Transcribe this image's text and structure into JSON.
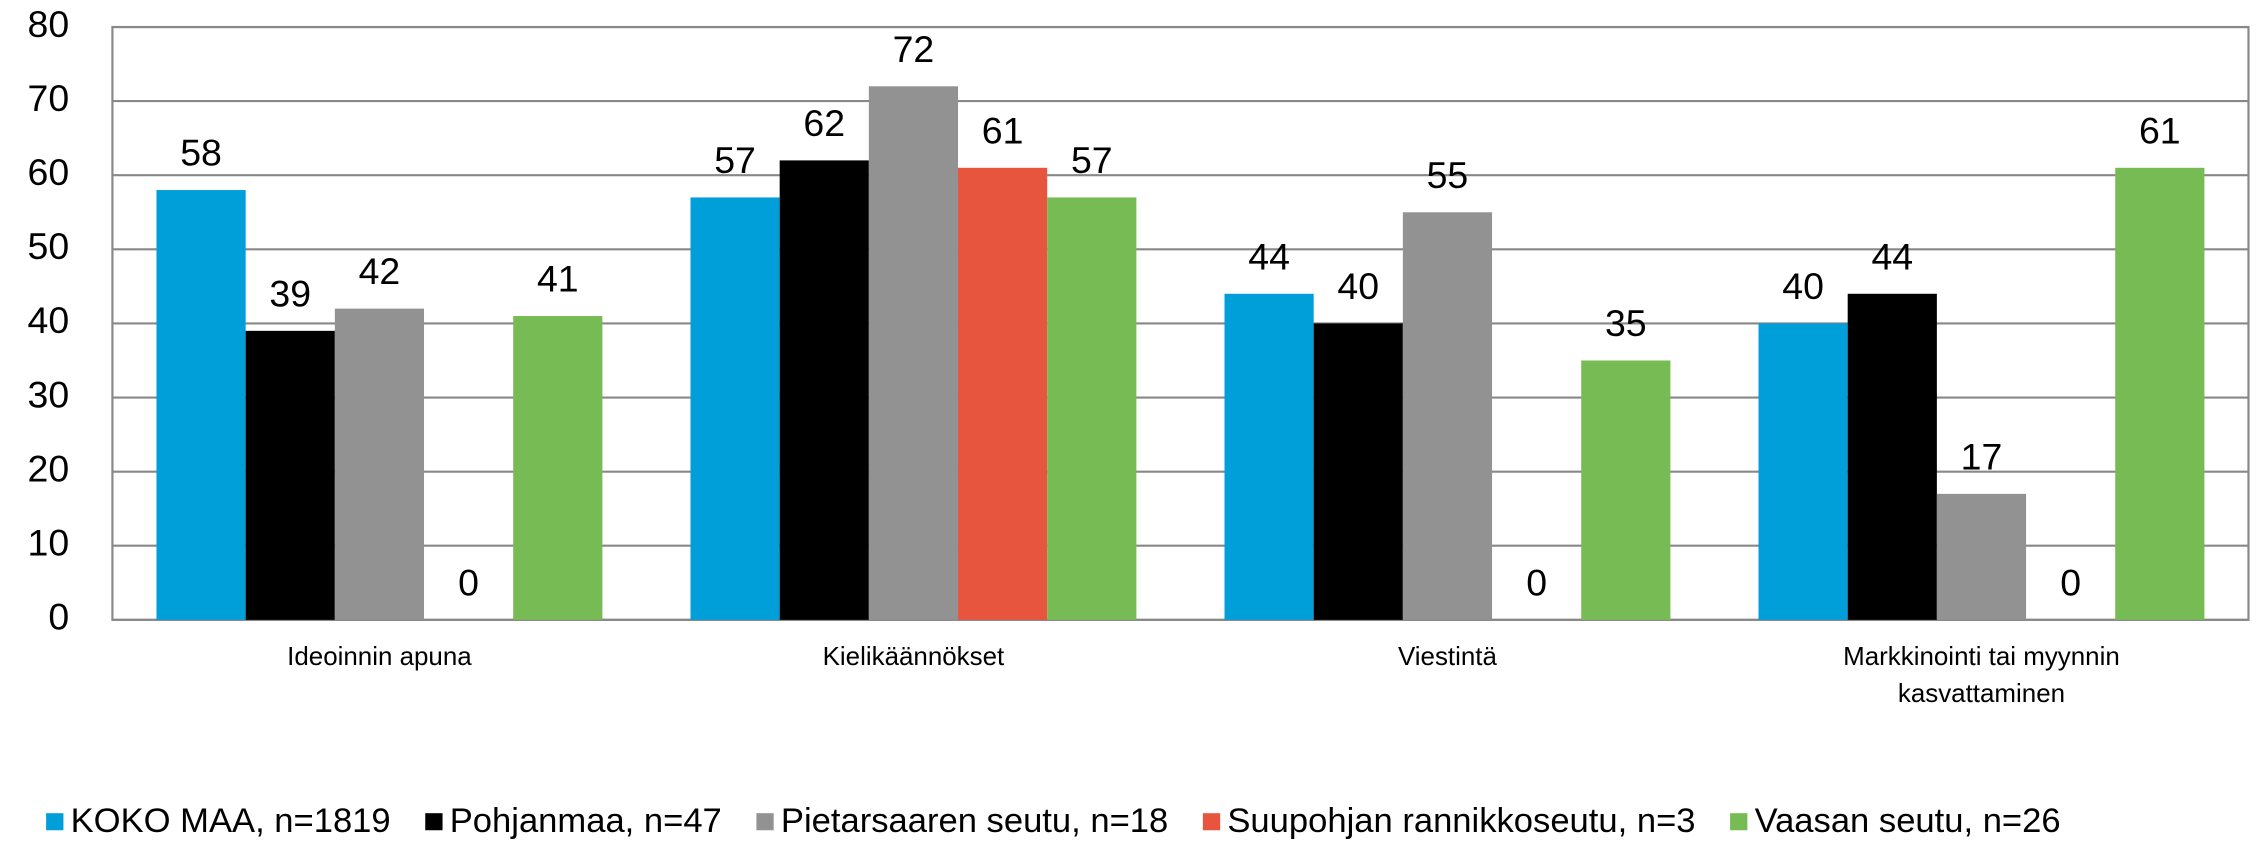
{
  "chart_data": {
    "type": "bar",
    "categories": [
      "Ideoinnin apuna",
      "Kielikäännökset",
      "Viestintä",
      "Markkinointi tai myynnin kasvattaminen"
    ],
    "series": [
      {
        "name": "KOKO MAA, n=1819",
        "color": "#009fda",
        "values": [
          58,
          57,
          44,
          40
        ]
      },
      {
        "name": "Pohjanmaa, n=47",
        "color": "#000000",
        "values": [
          39,
          62,
          40,
          44
        ]
      },
      {
        "name": "Pietarsaaren seutu, n=18",
        "color": "#929292",
        "values": [
          42,
          72,
          55,
          17
        ]
      },
      {
        "name": "Suupohjan rannikkoseutu, n=3",
        "color": "#e8553e",
        "values": [
          0,
          61,
          0,
          0
        ]
      },
      {
        "name": "Vaasan seutu, n=26",
        "color": "#77bb55",
        "values": [
          41,
          57,
          35,
          61
        ]
      }
    ],
    "ylim": [
      0,
      80
    ],
    "yticks": [
      0,
      10,
      20,
      30,
      40,
      50,
      60,
      70,
      80
    ],
    "grid": true,
    "legend": "bottom"
  }
}
